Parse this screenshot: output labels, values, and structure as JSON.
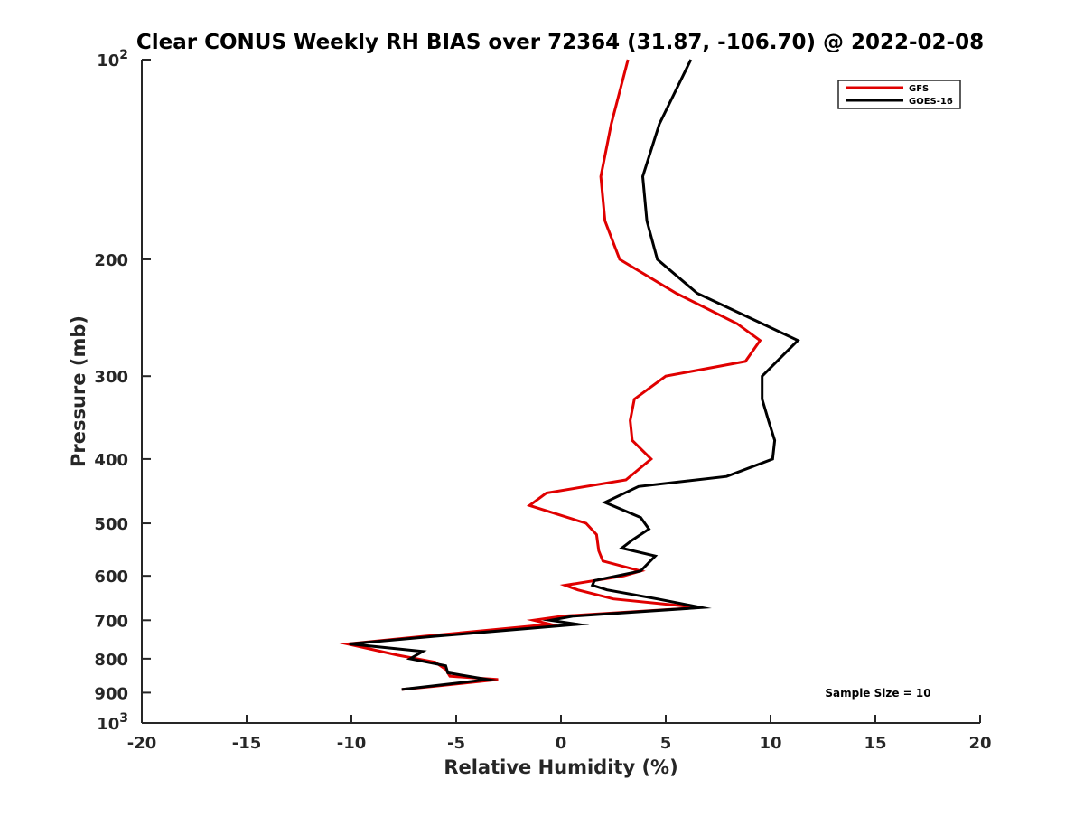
{
  "chart_data": {
    "type": "line",
    "title": "Clear CONUS Weekly RH BIAS over 72364 (31.87, -106.70) @ 2022-02-08",
    "xlabel": "Relative Humidity (%)",
    "ylabel": "Pressure (mb)",
    "xlim": [
      -20,
      20
    ],
    "ylim": [
      100,
      1000
    ],
    "y_scale": "log",
    "y_reversed": true,
    "grid": false,
    "legend_position": "top-right",
    "annotation": "Sample Size = 10",
    "x_ticks": [
      {
        "value": -20,
        "label": "-20"
      },
      {
        "value": -15,
        "label": "-15"
      },
      {
        "value": -10,
        "label": "-10"
      },
      {
        "value": -5,
        "label": "-5"
      },
      {
        "value": 0,
        "label": "0"
      },
      {
        "value": 5,
        "label": "5"
      },
      {
        "value": 10,
        "label": "10"
      },
      {
        "value": 15,
        "label": "15"
      },
      {
        "value": 20,
        "label": "20"
      }
    ],
    "y_ticks": [
      {
        "value": 100,
        "label": "10",
        "sup": "2"
      },
      {
        "value": 200,
        "label": "200",
        "sup": ""
      },
      {
        "value": 300,
        "label": "300",
        "sup": ""
      },
      {
        "value": 400,
        "label": "400",
        "sup": ""
      },
      {
        "value": 500,
        "label": "500",
        "sup": ""
      },
      {
        "value": 600,
        "label": "600",
        "sup": ""
      },
      {
        "value": 700,
        "label": "700",
        "sup": ""
      },
      {
        "value": 800,
        "label": "800",
        "sup": ""
      },
      {
        "value": 900,
        "label": "900",
        "sup": ""
      },
      {
        "value": 1000,
        "label": "10",
        "sup": "3"
      }
    ],
    "series": [
      {
        "name": "GFS",
        "color": "#e00000",
        "points": [
          [
            3.2,
            100
          ],
          [
            2.4,
            125
          ],
          [
            1.9,
            150
          ],
          [
            2.1,
            175
          ],
          [
            2.8,
            200
          ],
          [
            5.5,
            225
          ],
          [
            8.4,
            250
          ],
          [
            9.5,
            265
          ],
          [
            8.8,
            285
          ],
          [
            5.0,
            300
          ],
          [
            3.5,
            325
          ],
          [
            3.3,
            350
          ],
          [
            3.4,
            375
          ],
          [
            4.3,
            400
          ],
          [
            3.1,
            430
          ],
          [
            -0.7,
            450
          ],
          [
            -1.5,
            470
          ],
          [
            1.2,
            500
          ],
          [
            1.7,
            520
          ],
          [
            1.8,
            550
          ],
          [
            2.0,
            570
          ],
          [
            3.8,
            590
          ],
          [
            3.0,
            600
          ],
          [
            0.2,
            620
          ],
          [
            0.8,
            630
          ],
          [
            2.5,
            650
          ],
          [
            6.6,
            670
          ],
          [
            0.1,
            690
          ],
          [
            -1.3,
            700
          ],
          [
            -0.5,
            710
          ],
          [
            -6.5,
            740
          ],
          [
            -10.2,
            760
          ],
          [
            -7.8,
            790
          ],
          [
            -6.0,
            810
          ],
          [
            -5.5,
            830
          ],
          [
            -5.3,
            850
          ],
          [
            -3.0,
            860
          ],
          [
            -6.0,
            880
          ],
          [
            -7.6,
            890
          ]
        ]
      },
      {
        "name": "GOES-16",
        "color": "#000000",
        "points": [
          [
            6.2,
            100
          ],
          [
            4.7,
            125
          ],
          [
            3.9,
            150
          ],
          [
            4.1,
            175
          ],
          [
            4.6,
            200
          ],
          [
            6.5,
            225
          ],
          [
            9.6,
            250
          ],
          [
            11.3,
            265
          ],
          [
            9.6,
            300
          ],
          [
            9.6,
            325
          ],
          [
            9.9,
            350
          ],
          [
            10.2,
            375
          ],
          [
            10.1,
            400
          ],
          [
            7.9,
            425
          ],
          [
            3.7,
            440
          ],
          [
            2.1,
            465
          ],
          [
            3.8,
            490
          ],
          [
            4.2,
            510
          ],
          [
            3.4,
            530
          ],
          [
            2.9,
            545
          ],
          [
            4.5,
            560
          ],
          [
            3.8,
            590
          ],
          [
            1.6,
            610
          ],
          [
            1.5,
            620
          ],
          [
            2.2,
            630
          ],
          [
            4.6,
            650
          ],
          [
            6.7,
            670
          ],
          [
            0.6,
            690
          ],
          [
            -0.5,
            700
          ],
          [
            0.8,
            710
          ],
          [
            -6.0,
            740
          ],
          [
            -10.1,
            760
          ],
          [
            -6.6,
            780
          ],
          [
            -7.2,
            800
          ],
          [
            -5.5,
            820
          ],
          [
            -5.4,
            840
          ],
          [
            -3.5,
            860
          ],
          [
            -7.6,
            890
          ]
        ]
      }
    ]
  }
}
